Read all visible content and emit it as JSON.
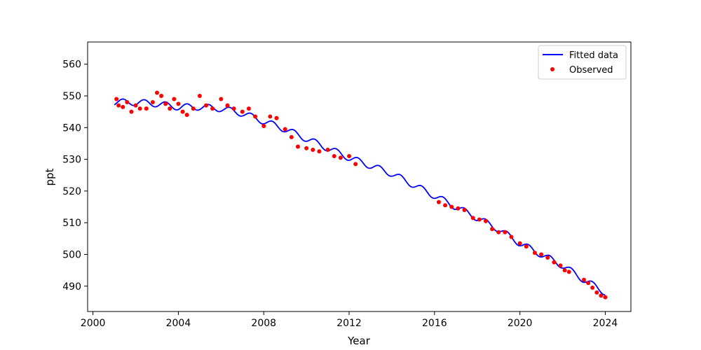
{
  "chart_data": {
    "type": "line+scatter",
    "title": "",
    "xlabel": "Year",
    "ylabel": "ppt",
    "xlim": [
      1999.75,
      2025.2
    ],
    "ylim": [
      482,
      567
    ],
    "x_ticks": [
      2000,
      2004,
      2008,
      2012,
      2016,
      2020,
      2024
    ],
    "y_ticks": [
      490,
      500,
      510,
      520,
      530,
      540,
      550,
      560
    ],
    "grid": false,
    "legend_position": "top-right",
    "colors": {
      "fitted": "#0000ff",
      "observed": "#ff0000"
    },
    "series": [
      {
        "name": "Fitted data",
        "kind": "line",
        "x": [
          2001.0,
          2002.0,
          2003.0,
          2004.0,
          2005.0,
          2006.0,
          2007.0,
          2008.0,
          2009.0,
          2010.0,
          2011.0,
          2012.0,
          2013.0,
          2014.0,
          2015.0,
          2016.0,
          2017.0,
          2018.0,
          2019.0,
          2020.0,
          2021.0,
          2022.0,
          2023.0,
          2024.0
        ],
        "y": [
          548.0,
          548.0,
          547.5,
          546.5,
          546.5,
          546.0,
          544.5,
          542.0,
          539.5,
          536.5,
          533.5,
          530.5,
          528.0,
          525.5,
          522.0,
          518.5,
          515.0,
          511.5,
          508.0,
          503.5,
          500.0,
          496.5,
          492.0,
          488.0
        ],
        "seasonal_amplitude": 1.0
      },
      {
        "name": "Observed",
        "kind": "scatter",
        "x": [
          2001.1,
          2001.2,
          2001.4,
          2001.6,
          2001.8,
          2002.0,
          2002.2,
          2002.5,
          2002.8,
          2003.0,
          2003.2,
          2003.4,
          2003.6,
          2003.8,
          2004.0,
          2004.2,
          2004.4,
          2004.7,
          2005.0,
          2005.3,
          2005.6,
          2006.0,
          2006.3,
          2006.6,
          2007.0,
          2007.3,
          2007.6,
          2008.0,
          2008.3,
          2008.6,
          2009.0,
          2009.3,
          2009.6,
          2010.0,
          2010.3,
          2010.6,
          2011.0,
          2011.3,
          2011.6,
          2012.0,
          2012.3,
          2016.2,
          2016.5,
          2016.8,
          2017.1,
          2017.4,
          2017.8,
          2018.1,
          2018.4,
          2018.7,
          2019.0,
          2019.3,
          2019.6,
          2020.0,
          2020.3,
          2020.7,
          2021.0,
          2021.3,
          2021.6,
          2021.9,
          2022.1,
          2022.3,
          2023.0,
          2023.2,
          2023.4,
          2023.6,
          2023.8,
          2024.0
        ],
        "y": [
          549.0,
          547.0,
          546.5,
          548.0,
          545.0,
          547.0,
          546.0,
          546.0,
          548.0,
          551.0,
          550.0,
          547.5,
          546.0,
          549.0,
          547.5,
          545.0,
          544.0,
          546.0,
          550.0,
          547.0,
          546.0,
          549.0,
          547.0,
          546.0,
          545.0,
          546.0,
          543.5,
          540.5,
          543.5,
          543.0,
          539.5,
          537.0,
          534.0,
          533.5,
          533.0,
          532.5,
          533.0,
          531.0,
          530.5,
          531.0,
          528.5,
          516.5,
          515.5,
          515.0,
          514.5,
          514.0,
          511.5,
          511.0,
          510.5,
          508.0,
          507.0,
          507.0,
          505.5,
          503.5,
          502.5,
          500.5,
          500.0,
          499.0,
          497.5,
          496.5,
          495.0,
          494.5,
          492.0,
          491.0,
          489.5,
          488.0,
          487.0,
          486.5
        ]
      }
    ]
  }
}
